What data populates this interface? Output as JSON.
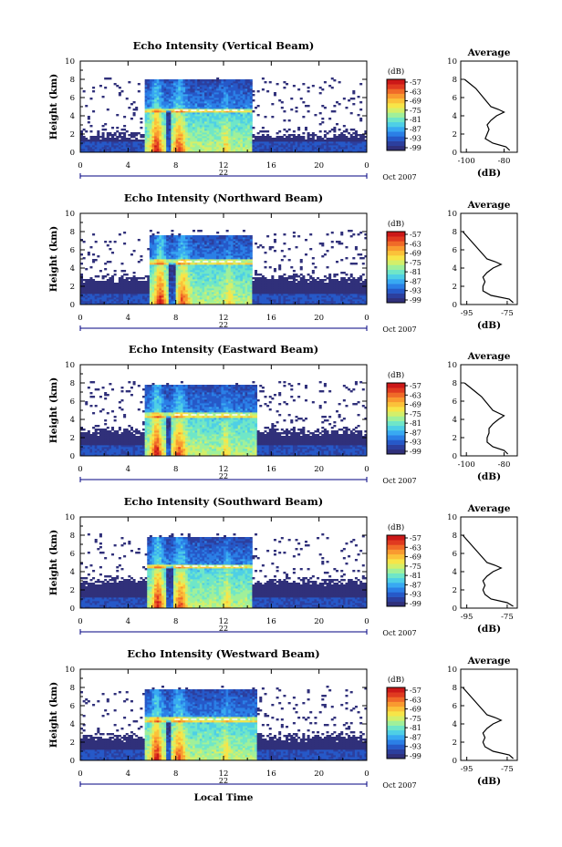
{
  "figure": {
    "xlabel": "Local Time",
    "date_label": "Oct 2007",
    "day_label": "22",
    "colorbar_label": "(dB)",
    "colorbar_ticks": [
      "-57",
      "-63",
      "-69",
      "-75",
      "-81",
      "-87",
      "-93",
      "-99"
    ],
    "colors": {
      "colormap": [
        "#30307a",
        "#2c3f9e",
        "#2659c8",
        "#2b7fe6",
        "#38a9f2",
        "#4ecfe6",
        "#6fe6c8",
        "#a0f09a",
        "#d4ef6a",
        "#f7e548",
        "#fbc23a",
        "#f99a30",
        "#f06a28",
        "#e03a20",
        "#cc1818"
      ],
      "line": "#000000",
      "day_marker": "#000080",
      "band_highlight": "#ffffff"
    }
  },
  "chart_data": [
    {
      "type": "heatmap",
      "title": "Echo Intensity (Vertical Beam)",
      "xlabel": "",
      "ylabel": "Height (km)",
      "xlim": [
        0,
        24
      ],
      "ylim": [
        0,
        10
      ],
      "xticks": [
        "0",
        "4",
        "8",
        "12",
        "16",
        "20",
        "0"
      ],
      "yticks": [
        "0",
        "2",
        "4",
        "6",
        "8",
        "10"
      ],
      "zlabel": "(dB)",
      "zlim": [
        -99,
        -57
      ],
      "rain_period_hours": [
        5.5,
        14.3
      ],
      "rain_top_km": 7.9,
      "bright_band_km": 4.6,
      "clear_air_top_km": 2.0,
      "average_profile": {
        "title": "Average",
        "xlabel": "(dB)",
        "xticks": [
          "-100",
          "-80"
        ],
        "xlim": [
          -103,
          -73
        ],
        "height_km": [
          0.2,
          0.6,
          1.0,
          1.5,
          2.0,
          2.5,
          3.0,
          3.5,
          4.0,
          4.4,
          4.7,
          5.0,
          5.5,
          6.0,
          6.5,
          7.0,
          7.5,
          8.0
        ],
        "values": [
          -77,
          -79,
          -86,
          -90,
          -89,
          -88,
          -89,
          -87,
          -84,
          -80,
          -83,
          -87,
          -89,
          -91,
          -93,
          -95,
          -98,
          -101
        ]
      }
    },
    {
      "type": "heatmap",
      "title": "Echo Intensity (Northward Beam)",
      "xlabel": "",
      "ylabel": "Height (km)",
      "xlim": [
        0,
        24
      ],
      "ylim": [
        0,
        10
      ],
      "xticks": [
        "0",
        "4",
        "8",
        "12",
        "16",
        "20",
        "0"
      ],
      "yticks": [
        "0",
        "2",
        "4",
        "6",
        "8",
        "10"
      ],
      "zlabel": "(dB)",
      "zlim": [
        -99,
        -57
      ],
      "rain_period_hours": [
        5.8,
        14.3
      ],
      "rain_top_km": 7.6,
      "bright_band_km": 4.7,
      "clear_air_top_km": 2.9,
      "average_profile": {
        "title": "Average",
        "xlabel": "(dB)",
        "xticks": [
          "-95",
          "-75"
        ],
        "xlim": [
          -98,
          -70
        ],
        "height_km": [
          0.2,
          0.6,
          1.0,
          1.5,
          2.0,
          2.5,
          3.0,
          3.5,
          4.0,
          4.4,
          4.7,
          5.0,
          5.5,
          6.0,
          6.5,
          7.0,
          7.5,
          8.0
        ],
        "values": [
          -72,
          -74,
          -83,
          -87,
          -87,
          -86,
          -87,
          -85,
          -82,
          -78,
          -81,
          -85,
          -87,
          -89,
          -91,
          -93,
          -95,
          -97
        ]
      }
    },
    {
      "type": "heatmap",
      "title": "Echo Intensity (Eastward Beam)",
      "xlabel": "",
      "ylabel": "Height (km)",
      "xlim": [
        0,
        24
      ],
      "ylim": [
        0,
        10
      ],
      "xticks": [
        "0",
        "4",
        "8",
        "12",
        "16",
        "20",
        "0"
      ],
      "yticks": [
        "0",
        "2",
        "4",
        "6",
        "8",
        "10"
      ],
      "zlabel": "(dB)",
      "zlim": [
        -99,
        -57
      ],
      "rain_period_hours": [
        5.5,
        14.8
      ],
      "rain_top_km": 7.7,
      "bright_band_km": 4.5,
      "clear_air_top_km": 2.8,
      "average_profile": {
        "title": "Average",
        "xlabel": "(dB)",
        "xticks": [
          "-100",
          "-80"
        ],
        "xlim": [
          -103,
          -73
        ],
        "height_km": [
          0.2,
          0.6,
          1.0,
          1.5,
          2.0,
          2.5,
          3.0,
          3.5,
          4.0,
          4.4,
          4.7,
          5.0,
          5.5,
          6.0,
          6.5,
          7.0,
          7.5,
          8.0
        ],
        "values": [
          -78,
          -80,
          -86,
          -89,
          -89,
          -88,
          -88,
          -86,
          -83,
          -80,
          -83,
          -86,
          -88,
          -90,
          -92,
          -95,
          -98,
          -101
        ]
      }
    },
    {
      "type": "heatmap",
      "title": "Echo Intensity (Southward Beam)",
      "xlabel": "",
      "ylabel": "Height (km)",
      "xlim": [
        0,
        24
      ],
      "ylim": [
        0,
        10
      ],
      "xticks": [
        "0",
        "4",
        "8",
        "12",
        "16",
        "20",
        "0"
      ],
      "yticks": [
        "0",
        "2",
        "4",
        "6",
        "8",
        "10"
      ],
      "zlabel": "(dB)",
      "zlim": [
        -99,
        -57
      ],
      "rain_period_hours": [
        5.6,
        14.3
      ],
      "rain_top_km": 7.7,
      "bright_band_km": 4.6,
      "clear_air_top_km": 3.0,
      "average_profile": {
        "title": "Average",
        "xlabel": "(dB)",
        "xticks": [
          "-95",
          "-75"
        ],
        "xlim": [
          -98,
          -70
        ],
        "height_km": [
          0.2,
          0.6,
          1.0,
          1.5,
          2.0,
          2.5,
          3.0,
          3.5,
          4.0,
          4.4,
          4.7,
          5.0,
          5.5,
          6.0,
          6.5,
          7.0,
          7.5,
          8.0
        ],
        "values": [
          -72,
          -75,
          -83,
          -86,
          -87,
          -86,
          -87,
          -85,
          -82,
          -78,
          -81,
          -85,
          -87,
          -89,
          -91,
          -93,
          -95,
          -97
        ]
      }
    },
    {
      "type": "heatmap",
      "title": "Echo Intensity (Westward Beam)",
      "xlabel": "Local Time",
      "ylabel": "Height (km)",
      "xlim": [
        0,
        24
      ],
      "ylim": [
        0,
        10
      ],
      "xticks": [
        "0",
        "4",
        "8",
        "12",
        "16",
        "20",
        "0"
      ],
      "yticks": [
        "0",
        "2",
        "4",
        "6",
        "8",
        "10"
      ],
      "zlabel": "(dB)",
      "zlim": [
        -99,
        -57
      ],
      "rain_period_hours": [
        5.5,
        14.8
      ],
      "rain_top_km": 7.7,
      "bright_band_km": 4.5,
      "clear_air_top_km": 2.6,
      "average_profile": {
        "title": "Average",
        "xlabel": "(dB)",
        "xticks": [
          "-95",
          "-75"
        ],
        "xlim": [
          -98,
          -70
        ],
        "height_km": [
          0.2,
          0.6,
          1.0,
          1.5,
          2.0,
          2.5,
          3.0,
          3.5,
          4.0,
          4.4,
          4.7,
          5.0,
          5.5,
          6.0,
          6.5,
          7.0,
          7.5,
          8.0
        ],
        "values": [
          -72,
          -74,
          -82,
          -86,
          -87,
          -86,
          -87,
          -85,
          -82,
          -78,
          -81,
          -85,
          -87,
          -89,
          -91,
          -93,
          -95,
          -97
        ]
      }
    }
  ]
}
